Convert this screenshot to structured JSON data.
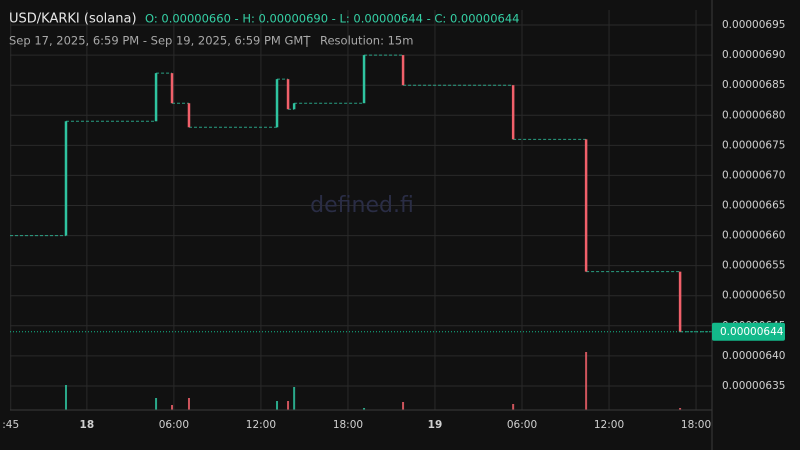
{
  "chart_data": {
    "type": "candlestick",
    "title": "USD/KARKI (solana)",
    "ohlc_text": "O: 0.00000660 - H: 0.00000690 - L: 0.00000644 - C: 0.00000644",
    "subtitle": "Sep 17, 2025, 6:59 PM - Sep 19, 2025, 6:59 PM GMT",
    "separator": "|",
    "resolution": "Resolution: 15m",
    "watermark": "defined.fi",
    "x": [
      22.56,
      28.77,
      29.87,
      31.04,
      37.11,
      37.87,
      38.29,
      43.11,
      45.8,
      53.39,
      58.42,
      64.9
    ],
    "open": [
      6.6e-06,
      6.79e-06,
      6.87e-06,
      6.82e-06,
      6.78e-06,
      6.86e-06,
      6.81e-06,
      6.82e-06,
      6.9e-06,
      6.85e-06,
      6.76e-06,
      6.54e-06
    ],
    "close": [
      6.79e-06,
      6.87e-06,
      6.82e-06,
      6.78e-06,
      6.86e-06,
      6.81e-06,
      6.82e-06,
      6.9e-06,
      6.85e-06,
      6.76e-06,
      6.54e-06,
      6.44e-06
    ],
    "volume": [
      25,
      12,
      5,
      12,
      9,
      9,
      23,
      2,
      8,
      6,
      58,
      2
    ],
    "volume_lim": [
      0,
      100
    ],
    "up_color": "#2fc4a0",
    "down_color": "#f0606a",
    "last_price": 6.44e-06,
    "last_color": "#13b98a",
    "xlim": [
      18.7,
      67.1
    ],
    "xticks": [
      {
        "value": 18.75,
        "label": ":45"
      },
      {
        "value": 24,
        "label": "18"
      },
      {
        "value": 30,
        "label": "06:00"
      },
      {
        "value": 36,
        "label": "12:00"
      },
      {
        "value": 42,
        "label": "18:00"
      },
      {
        "value": 48,
        "label": "19"
      },
      {
        "value": 54,
        "label": "06:00"
      },
      {
        "value": 60,
        "label": "12:00"
      },
      {
        "value": 66,
        "label": "18:00"
      }
    ],
    "ylim": [
      6.31e-06,
      6.975e-06
    ],
    "yticks": [
      6.35e-06,
      {
        "value": 6.4e-06,
        "label": "0.00000640"
      },
      6.45e-06,
      {
        "value": 6.5e-06,
        "label": "0.00000650"
      },
      6.55e-06,
      {
        "value": 6.6e-06,
        "label": "0.00000660"
      },
      6.65e-06,
      {
        "value": 6.7e-06,
        "label": "0.00000670"
      },
      6.75e-06,
      {
        "value": 6.8e-06,
        "label": "0.00000680"
      },
      6.85e-06,
      {
        "value": 6.9e-06,
        "label": "0.00000690"
      },
      6.95e-06
    ],
    "grid": true
  }
}
